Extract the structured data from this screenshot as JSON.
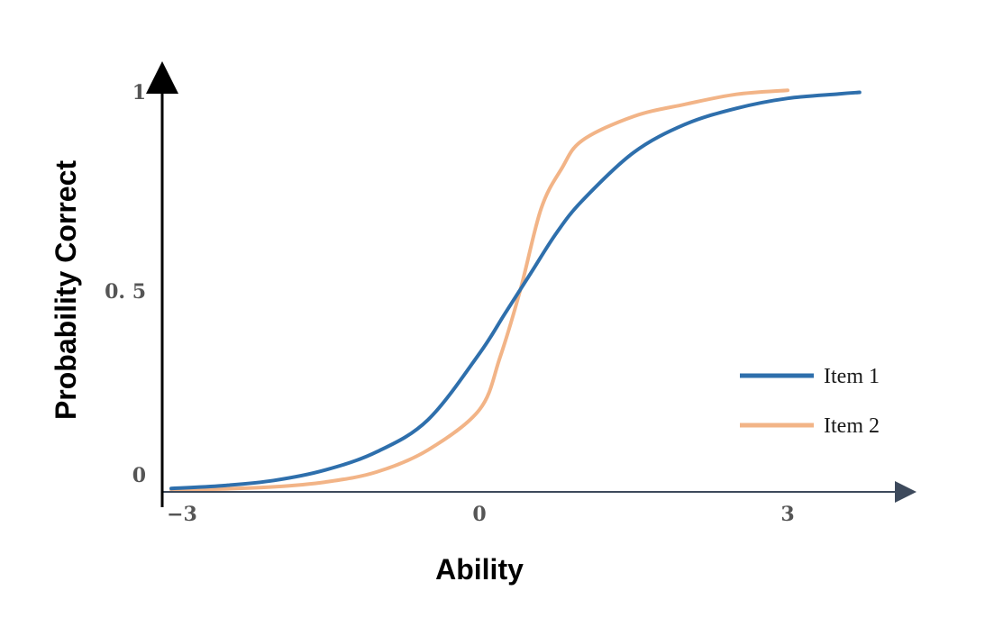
{
  "chart_data": {
    "type": "line",
    "title": "",
    "xlabel": "Ability",
    "ylabel": "Probability Correct",
    "xlim": [
      -3,
      3.7
    ],
    "ylim": [
      0,
      1
    ],
    "x_ticks": [
      {
        "value": -3,
        "label": "−3"
      },
      {
        "value": 0,
        "label": "0"
      },
      {
        "value": 3,
        "label": "3"
      }
    ],
    "y_ticks": [
      {
        "value": 0,
        "label": "0"
      },
      {
        "value": 0.5,
        "label": "0. 5"
      },
      {
        "value": 1,
        "label": "1"
      }
    ],
    "grid": false,
    "legend_position": "bottom-right",
    "series": [
      {
        "name": "Item 1",
        "color": "#2e6fac",
        "x": [
          -3.0,
          -2.5,
          -2.0,
          -1.5,
          -1.0,
          -0.5,
          0.0,
          0.25,
          0.5,
          0.75,
          1.0,
          1.5,
          2.0,
          2.5,
          3.0,
          3.5,
          3.7
        ],
        "y": [
          0.004,
          0.011,
          0.024,
          0.05,
          0.095,
          0.175,
          0.34,
          0.44,
          0.54,
          0.64,
          0.72,
          0.84,
          0.91,
          0.95,
          0.975,
          0.986,
          0.99
        ]
      },
      {
        "name": "Item 2",
        "color": "#f2b487",
        "x": [
          -3.0,
          -2.5,
          -2.0,
          -1.5,
          -1.0,
          -0.5,
          0.0,
          0.2,
          0.4,
          0.6,
          0.8,
          1.0,
          1.5,
          2.0,
          2.5,
          3.0
        ],
        "y": [
          0.001,
          0.003,
          0.008,
          0.02,
          0.045,
          0.1,
          0.2,
          0.33,
          0.5,
          0.7,
          0.8,
          0.87,
          0.93,
          0.96,
          0.985,
          0.995
        ]
      }
    ]
  }
}
